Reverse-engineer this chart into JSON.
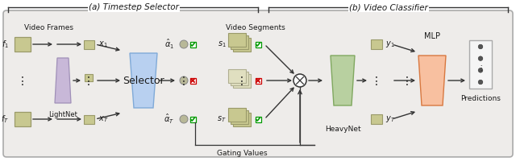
{
  "bg_color": "#eeecea",
  "border_color": "#888888",
  "olive": "#9a9a6a",
  "olive_light": "#c8c890",
  "olive_mid": "#b0b080",
  "purple_light": "#c8b8d8",
  "purple_dark": "#a090b8",
  "blue_light": "#b8d0f0",
  "blue_dark": "#80aad8",
  "green_light": "#b8d0a0",
  "green_dark": "#80a860",
  "orange_light": "#f8c0a0",
  "orange_dark": "#d87840",
  "arrow_color": "#333333",
  "text_color": "#1a1a1a",
  "check_green": "#009900",
  "cross_red": "#cc0000",
  "gray_circle": "#b8b898",
  "pred_bg": "#f5f5f5",
  "pred_border": "#aaaaaa",
  "title_a": "(a) Timestep Selector",
  "title_b": "(b) Video Classifier",
  "label_videoframes": "Video Frames",
  "label_lightnet": "LightNet",
  "label_selector": "Selector",
  "label_gatingvals": "Gating Values",
  "label_videosegments": "Video Segments",
  "label_heavynet": "HeavyNet",
  "label_mlp": "MLP",
  "label_predictions": "Predictions"
}
